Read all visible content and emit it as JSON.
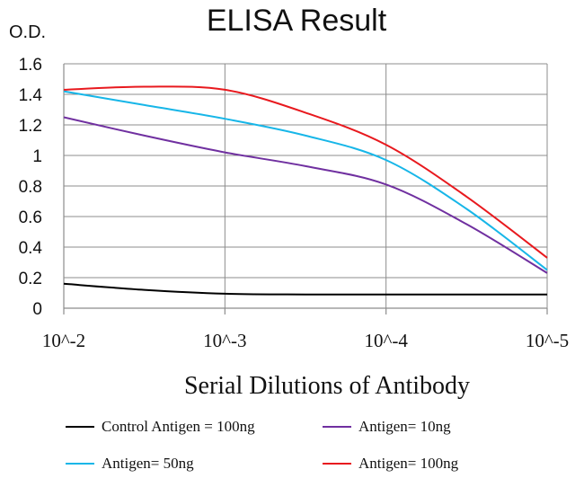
{
  "chart_data": {
    "type": "line",
    "title": "ELISA Result",
    "ylabel": "O.D.",
    "xlabel": "Serial Dilutions  of Antibody",
    "x_tick_labels": [
      "10^-2",
      "10^-3",
      "10^-4",
      "10^-5"
    ],
    "x": [
      -2,
      -2.5,
      -3,
      -3.5,
      -4,
      -4.5,
      -5
    ],
    "x_scale": "log",
    "ylim": [
      0,
      1.6
    ],
    "y_ticks": [
      "0",
      "0.2",
      "0.4",
      "0.6",
      "0.8",
      "1",
      "1.2",
      "1.4",
      "1.6"
    ],
    "grid": true,
    "legend_position": "bottom",
    "series": [
      {
        "name": "Control Antigen = 100ng",
        "color": "#000000",
        "values": [
          0.16,
          0.12,
          0.095,
          0.09,
          0.09,
          0.09,
          0.09
        ]
      },
      {
        "name": "Antigen= 10ng",
        "color": "#7030a0",
        "values": [
          1.25,
          1.13,
          1.02,
          0.93,
          0.81,
          0.55,
          0.23
        ]
      },
      {
        "name": "Antigen= 50ng",
        "color": "#17b6e8",
        "values": [
          1.42,
          1.33,
          1.24,
          1.13,
          0.97,
          0.65,
          0.25
        ]
      },
      {
        "name": "Antigen= 100ng",
        "color": "#e8191e",
        "values": [
          1.43,
          1.45,
          1.43,
          1.28,
          1.07,
          0.73,
          0.33
        ]
      }
    ]
  }
}
